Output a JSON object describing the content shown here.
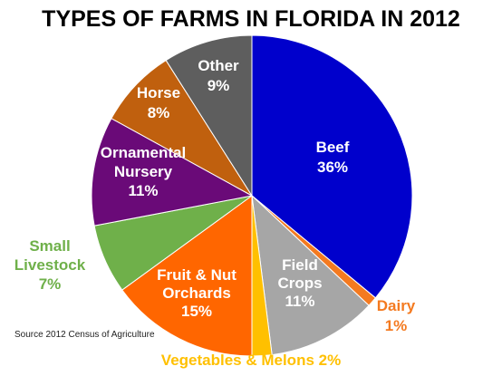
{
  "chart_data": {
    "type": "pie",
    "title": "TYPES OF FARMS IN FLORIDA IN 2012",
    "source": "Source 2012 Census of Agriculture",
    "slices": [
      {
        "name": "Beef",
        "lines": [
          "Beef",
          "36%"
        ],
        "value": 36,
        "color": "#0000CC",
        "label_color": "#ffffff",
        "label_side": "inside"
      },
      {
        "name": "Dairy",
        "lines": [
          "Dairy",
          "1%"
        ],
        "value": 1,
        "color": "#F47A20",
        "label_color": "#F47A20",
        "label_side": "outside"
      },
      {
        "name": "Field Crops",
        "lines": [
          "Field",
          "Crops",
          "11%"
        ],
        "value": 11,
        "color": "#A6A6A6",
        "label_color": "#ffffff",
        "label_side": "inside"
      },
      {
        "name": "Vegetables & Melons",
        "lines": [
          "Vegetables & Melons 2%"
        ],
        "value": 2,
        "color": "#FFC000",
        "label_color": "#FFC000",
        "label_side": "outside"
      },
      {
        "name": "Fruit & Nut Orchards",
        "lines": [
          "Fruit & Nut",
          "Orchards",
          "15%"
        ],
        "value": 15,
        "color": "#FF6600",
        "label_color": "#ffffff",
        "label_side": "inside"
      },
      {
        "name": "Small Livestock",
        "lines": [
          "Small",
          "Livestock",
          "7%"
        ],
        "value": 7,
        "color": "#6FB04A",
        "label_color": "#6FB04A",
        "label_side": "outside"
      },
      {
        "name": "Ornamental Nursery",
        "lines": [
          "Ornamental",
          "Nursery",
          "11%"
        ],
        "value": 11,
        "color": "#6A0A78",
        "label_color": "#ffffff",
        "label_side": "inside"
      },
      {
        "name": "Horse",
        "lines": [
          "Horse",
          "8%"
        ],
        "value": 8,
        "color": "#C0600E",
        "label_color": "#ffffff",
        "label_side": "inside"
      },
      {
        "name": "Other",
        "lines": [
          "Other",
          "9%"
        ],
        "value": 9,
        "color": "#5E5E5E",
        "label_color": "#ffffff",
        "label_side": "inside"
      }
    ]
  }
}
